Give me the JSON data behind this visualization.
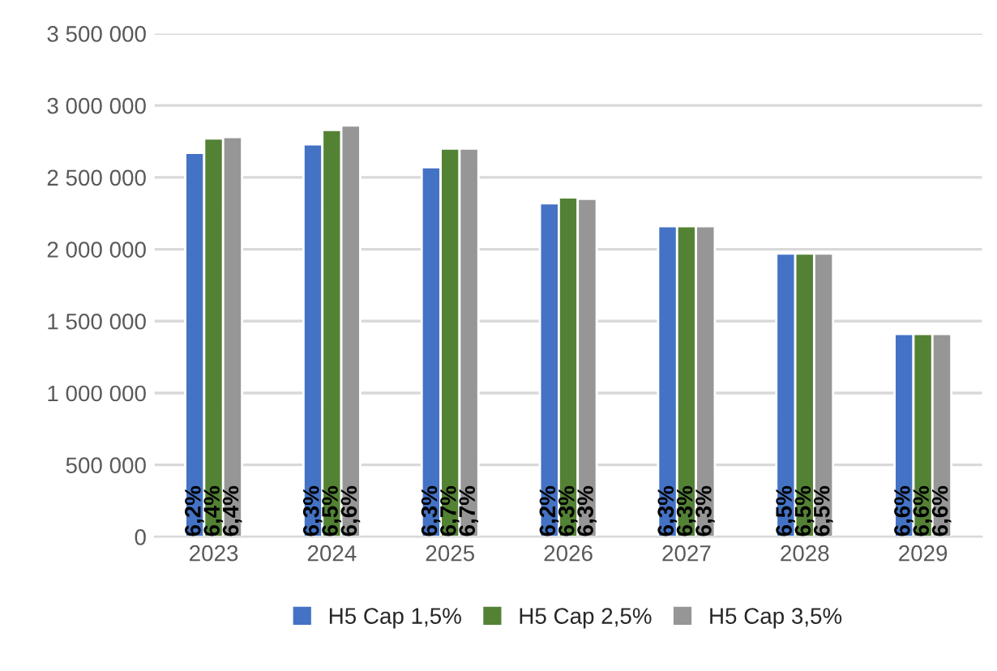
{
  "chart_data": {
    "type": "bar",
    "categories": [
      "2023",
      "2024",
      "2025",
      "2026",
      "2027",
      "2028",
      "2029"
    ],
    "series": [
      {
        "name": "H5 Cap 1,5%",
        "color": "#4472c4",
        "values": [
          2670000,
          2730000,
          2570000,
          2320000,
          2160000,
          1970000,
          1410000
        ]
      },
      {
        "name": "H5 Cap 2,5%",
        "color": "#548235",
        "values": [
          2770000,
          2830000,
          2700000,
          2360000,
          2160000,
          1970000,
          1410000
        ]
      },
      {
        "name": "H5 Cap 3,5%",
        "color": "#969696",
        "values": [
          2780000,
          2860000,
          2700000,
          2350000,
          2160000,
          1970000,
          1410000
        ]
      }
    ],
    "annotations": [
      {
        "text": "6,2%",
        "x": "2023",
        "y": 0
      },
      {
        "text": "6,4%",
        "x": "2023",
        "y": 0
      },
      {
        "text": "6,4%",
        "x": "2023",
        "y": 0
      },
      {
        "text": "6,3%",
        "x": "2024",
        "y": 0
      },
      {
        "text": "6,5%",
        "x": "2024",
        "y": 0
      },
      {
        "text": "6,6%",
        "x": "2024",
        "y": 0
      },
      {
        "text": "6,3%",
        "x": "2025",
        "y": 0
      },
      {
        "text": "6,7%",
        "x": "2025",
        "y": 0
      },
      {
        "text": "6,7%",
        "x": "2025",
        "y": 0
      },
      {
        "text": "6,2%",
        "x": "2026",
        "y": 0
      },
      {
        "text": "6,3%",
        "x": "2026",
        "y": 0
      },
      {
        "text": "6,3%",
        "x": "2026",
        "y": 0
      },
      {
        "text": "6,3%",
        "x": "2027",
        "y": 0
      },
      {
        "text": "6,3%",
        "x": "2027",
        "y": 0
      },
      {
        "text": "6,3%",
        "x": "2027",
        "y": 0
      },
      {
        "text": "6,5%",
        "x": "2028",
        "y": 0
      },
      {
        "text": "6,5%",
        "x": "2028",
        "y": 0
      },
      {
        "text": "6,5%",
        "x": "2028",
        "y": 0
      },
      {
        "text": "6,6%",
        "x": "2029",
        "y": 0
      },
      {
        "text": "6,6%",
        "x": "2029",
        "y": 0
      },
      {
        "text": "6,6%",
        "x": "2029",
        "y": 0
      }
    ],
    "ylim": [
      0,
      3500000
    ],
    "yticks": [
      {
        "value": 0,
        "label": "0"
      },
      {
        "value": 500000,
        "label": "500 000"
      },
      {
        "value": 1000000,
        "label": "1 000 000"
      },
      {
        "value": 1500000,
        "label": "1 500 000"
      },
      {
        "value": 2000000,
        "label": "2 000 000"
      },
      {
        "value": 2500000,
        "label": "2 500 000"
      },
      {
        "value": 3000000,
        "label": "3 000 000"
      },
      {
        "value": 3500000,
        "label": "3 500 000"
      }
    ],
    "grid": "y",
    "legend": "bottom"
  }
}
